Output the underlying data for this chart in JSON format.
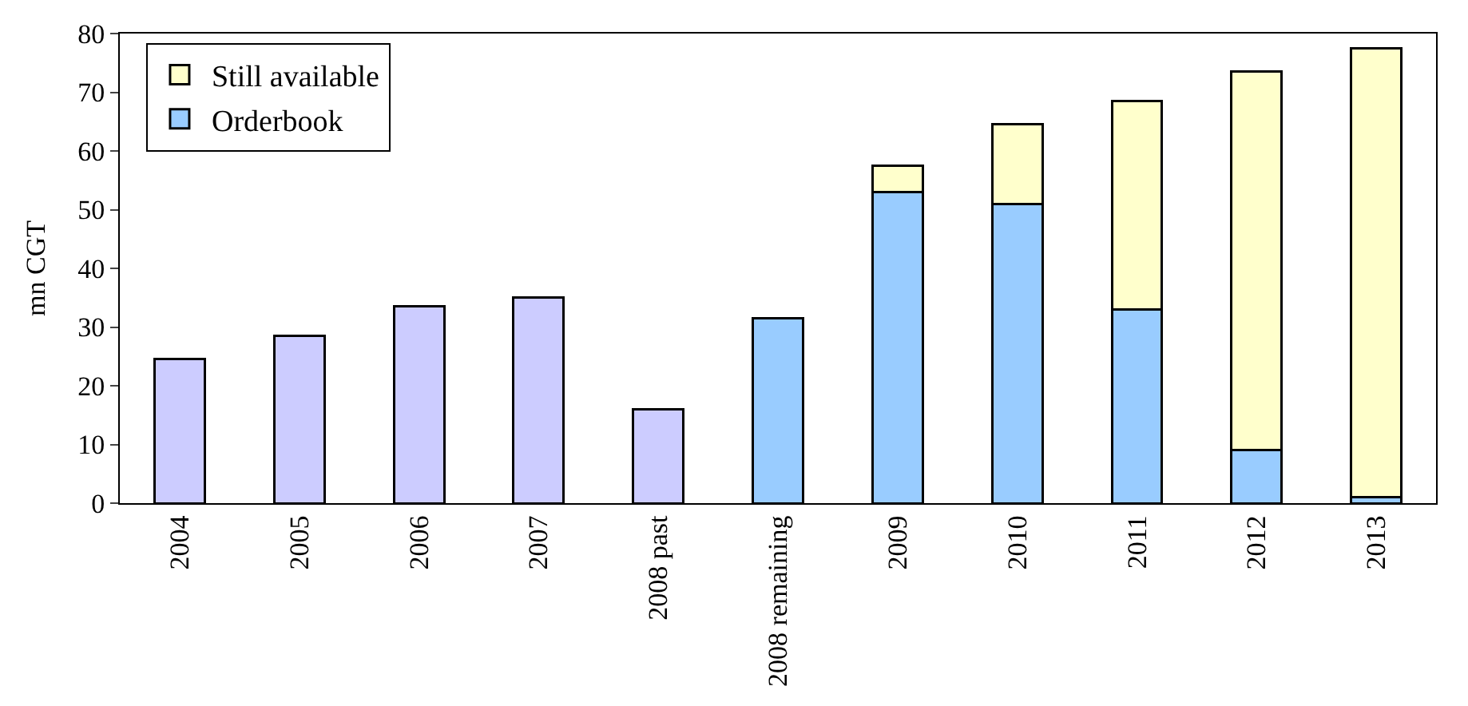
{
  "chart_data": {
    "type": "bar",
    "stacked": true,
    "ylabel": "mn CGT",
    "categories": [
      "2004",
      "2005",
      "2006",
      "2007",
      "2008 past",
      "2008 remaining",
      "2009",
      "2010",
      "2011",
      "2012",
      "2013"
    ],
    "series": [
      {
        "color": "#ccccff",
        "values": [
          24.5,
          28.5,
          33.5,
          35,
          16,
          null,
          null,
          null,
          null,
          null,
          null
        ]
      },
      {
        "name": "Orderbook",
        "color": "#99ccff",
        "values": [
          null,
          null,
          null,
          null,
          null,
          31.5,
          53,
          51,
          33,
          9,
          1
        ]
      },
      {
        "name": "Still available",
        "color": "#ffffcc",
        "values": [
          null,
          null,
          null,
          null,
          null,
          null,
          4.5,
          13.5,
          35.5,
          64.5,
          76.5
        ]
      }
    ],
    "ylim": [
      0,
      80
    ],
    "yticks": [
      0,
      10,
      20,
      30,
      40,
      50,
      60,
      70,
      80
    ],
    "legend": "top left"
  }
}
